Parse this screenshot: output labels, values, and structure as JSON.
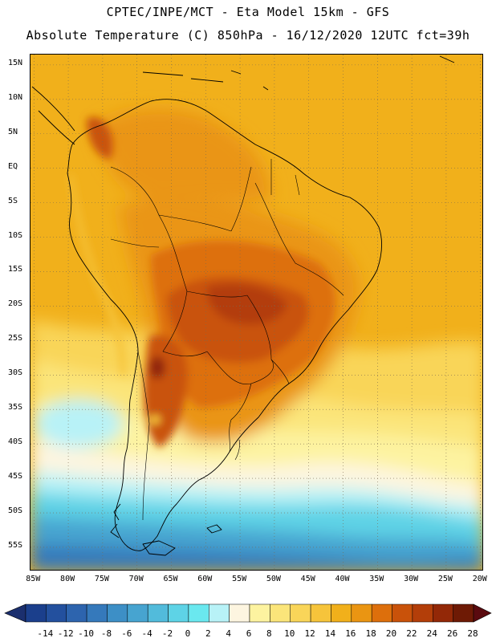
{
  "header": {
    "line1": "CPTEC/INPE/MCT -  Eta Model 15km - GFS",
    "line2": "Absolute Temperature (C) 850hPa - 16/12/2020 12UTC fct=39h"
  },
  "map": {
    "lat_labels": [
      "15N",
      "10N",
      "5N",
      "EQ",
      "5S",
      "10S",
      "15S",
      "20S",
      "25S",
      "30S",
      "35S",
      "40S",
      "45S",
      "50S",
      "55S"
    ],
    "lat_values": [
      15,
      10,
      5,
      0,
      -5,
      -10,
      -15,
      -20,
      -25,
      -30,
      -35,
      -40,
      -45,
      -50,
      -55
    ],
    "lon_labels": [
      "85W",
      "80W",
      "75W",
      "70W",
      "65W",
      "60W",
      "55W",
      "50W",
      "45W",
      "40W",
      "35W",
      "30W",
      "25W",
      "20W"
    ],
    "lon_values": [
      -85,
      -80,
      -75,
      -70,
      -65,
      -60,
      -55,
      -50,
      -45,
      -40,
      -35,
      -30,
      -25,
      -20
    ],
    "extent": {
      "lon_min": -85.5,
      "lon_max": -19.5,
      "lat_min": -58.5,
      "lat_max": 16.5
    },
    "gridlines": "dotted",
    "coastline_color": "#000000"
  },
  "colorbar": {
    "labels": [
      "-14",
      "-12",
      "-10",
      "-8",
      "-6",
      "-4",
      "-2",
      "0",
      "2",
      "4",
      "6",
      "8",
      "10",
      "12",
      "14",
      "16",
      "18",
      "20",
      "22",
      "24",
      "26",
      "28"
    ],
    "colors": [
      "#1b3f8c",
      "#23509e",
      "#2d64ae",
      "#3579bb",
      "#3d8fc6",
      "#47a4d0",
      "#52bbdb",
      "#5ed3e6",
      "#6ae8ef",
      "#b8f2f7",
      "#fdf5e0",
      "#fdf3a0",
      "#fbe57a",
      "#f9d559",
      "#f6c43b",
      "#f1b01b",
      "#ea9512",
      "#dd6f0c",
      "#c9520a",
      "#b33e09",
      "#932807",
      "#6e1a05"
    ],
    "under_color": "#1b2f6e",
    "over_color": "#5a0a0f"
  }
}
